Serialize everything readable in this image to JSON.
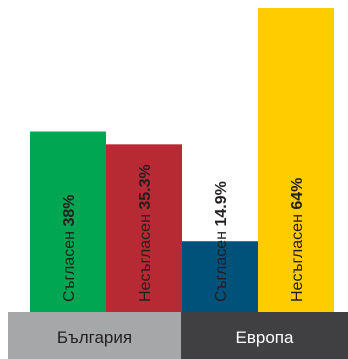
{
  "chart_data": {
    "type": "bar",
    "groups": [
      {
        "label": "България",
        "bars": [
          {
            "label": "Съгласен",
            "value_text": "38%",
            "value": 38,
            "color": "#00A651"
          },
          {
            "label": "Несъгласен",
            "value_text": "35.3%",
            "value": 35.3,
            "color": "#B72A33"
          }
        ]
      },
      {
        "label": "Европа",
        "bars": [
          {
            "label": "Съгласен",
            "value_text": "14.9%",
            "value": 14.9,
            "color": "#00527A"
          },
          {
            "label": "Несъгласен",
            "value_text": "64%",
            "value": 64,
            "color": "#FFCC00"
          }
        ]
      }
    ],
    "group_colors": [
      "#A6A7A9",
      "#404042"
    ],
    "group_label_colors": [
      "#231F20",
      "#FFFFFF"
    ],
    "title": "",
    "xlabel": "",
    "ylabel": ""
  }
}
